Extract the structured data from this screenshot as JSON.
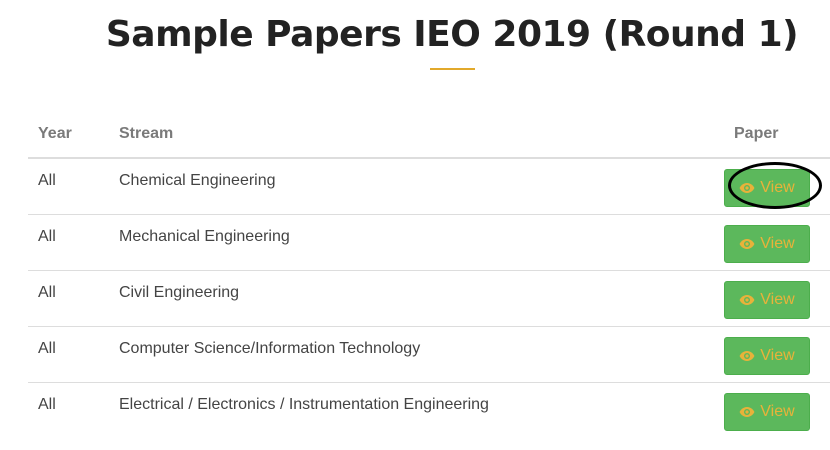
{
  "page": {
    "title": "Sample Papers IEO 2019 (Round 1)"
  },
  "table": {
    "headers": {
      "year": "Year",
      "stream": "Stream",
      "paper": "Paper"
    },
    "rows": [
      {
        "year": "All",
        "stream": "Chemical Engineering",
        "paper_label": "View"
      },
      {
        "year": "All",
        "stream": "Mechanical Engineering",
        "paper_label": "View"
      },
      {
        "year": "All",
        "stream": "Civil Engineering",
        "paper_label": "View"
      },
      {
        "year": "All",
        "stream": "Computer Science/Information Technology",
        "paper_label": "View"
      },
      {
        "year": "All",
        "stream": "Electrical / Electronics / Instrumentation Engineering",
        "paper_label": "View"
      }
    ]
  },
  "icons": {
    "view": "eye-icon"
  },
  "colors": {
    "accent": "#e2a92b",
    "button_bg": "#5cb85c",
    "button_text": "#e8b23a",
    "highlight_ring": "#000000"
  }
}
